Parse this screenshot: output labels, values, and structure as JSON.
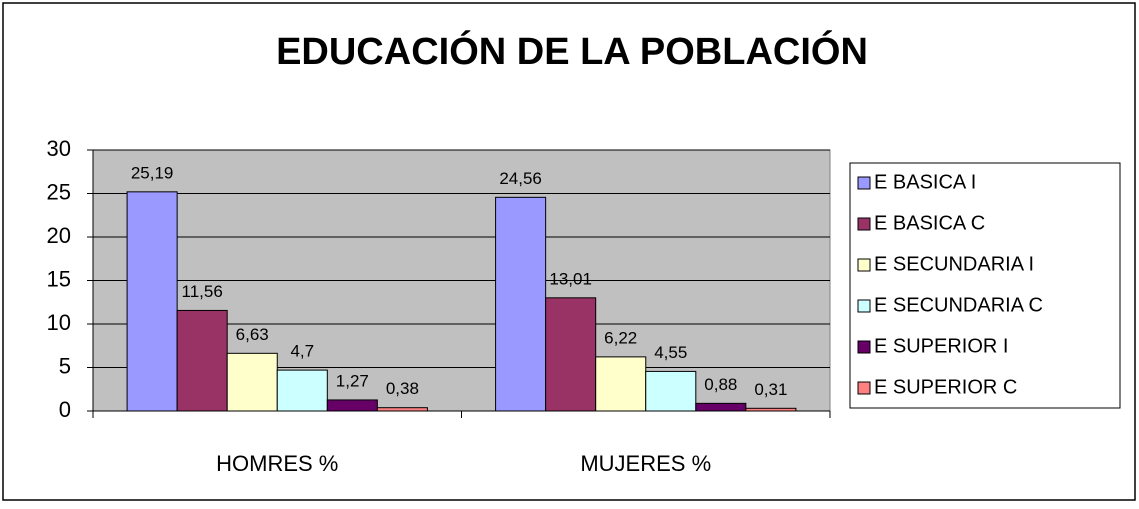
{
  "chart_data": {
    "type": "bar",
    "title": "EDUCACIÓN DE LA POBLACIÓN",
    "categories": [
      "HOMRES %",
      "MUJERES %"
    ],
    "series": [
      {
        "name": "E BASICA I",
        "color": "#9999ff",
        "values": [
          25.19,
          24.56
        ],
        "value_labels": [
          "25,19",
          "24,56"
        ]
      },
      {
        "name": "E BASICA C",
        "color": "#993366",
        "values": [
          11.56,
          13.01
        ],
        "value_labels": [
          "11,56",
          "13,01"
        ]
      },
      {
        "name": "E SECUNDARIA I",
        "color": "#ffffcc",
        "values": [
          6.63,
          6.22
        ],
        "value_labels": [
          "6,63",
          "6,22"
        ]
      },
      {
        "name": "E SECUNDARIA C",
        "color": "#ccffff",
        "values": [
          4.7,
          4.55
        ],
        "value_labels": [
          "4,7",
          "4,55"
        ]
      },
      {
        "name": "E SUPERIOR I",
        "color": "#660066",
        "values": [
          1.27,
          0.88
        ],
        "value_labels": [
          "1,27",
          "0,88"
        ]
      },
      {
        "name": "E SUPERIOR C",
        "color": "#ff8080",
        "values": [
          0.38,
          0.31
        ],
        "value_labels": [
          "0,38",
          "0,31"
        ]
      }
    ],
    "ylim": [
      0,
      30
    ],
    "yticks": [
      0,
      5,
      10,
      15,
      20,
      25,
      30
    ],
    "grid": true,
    "legend": "right"
  }
}
